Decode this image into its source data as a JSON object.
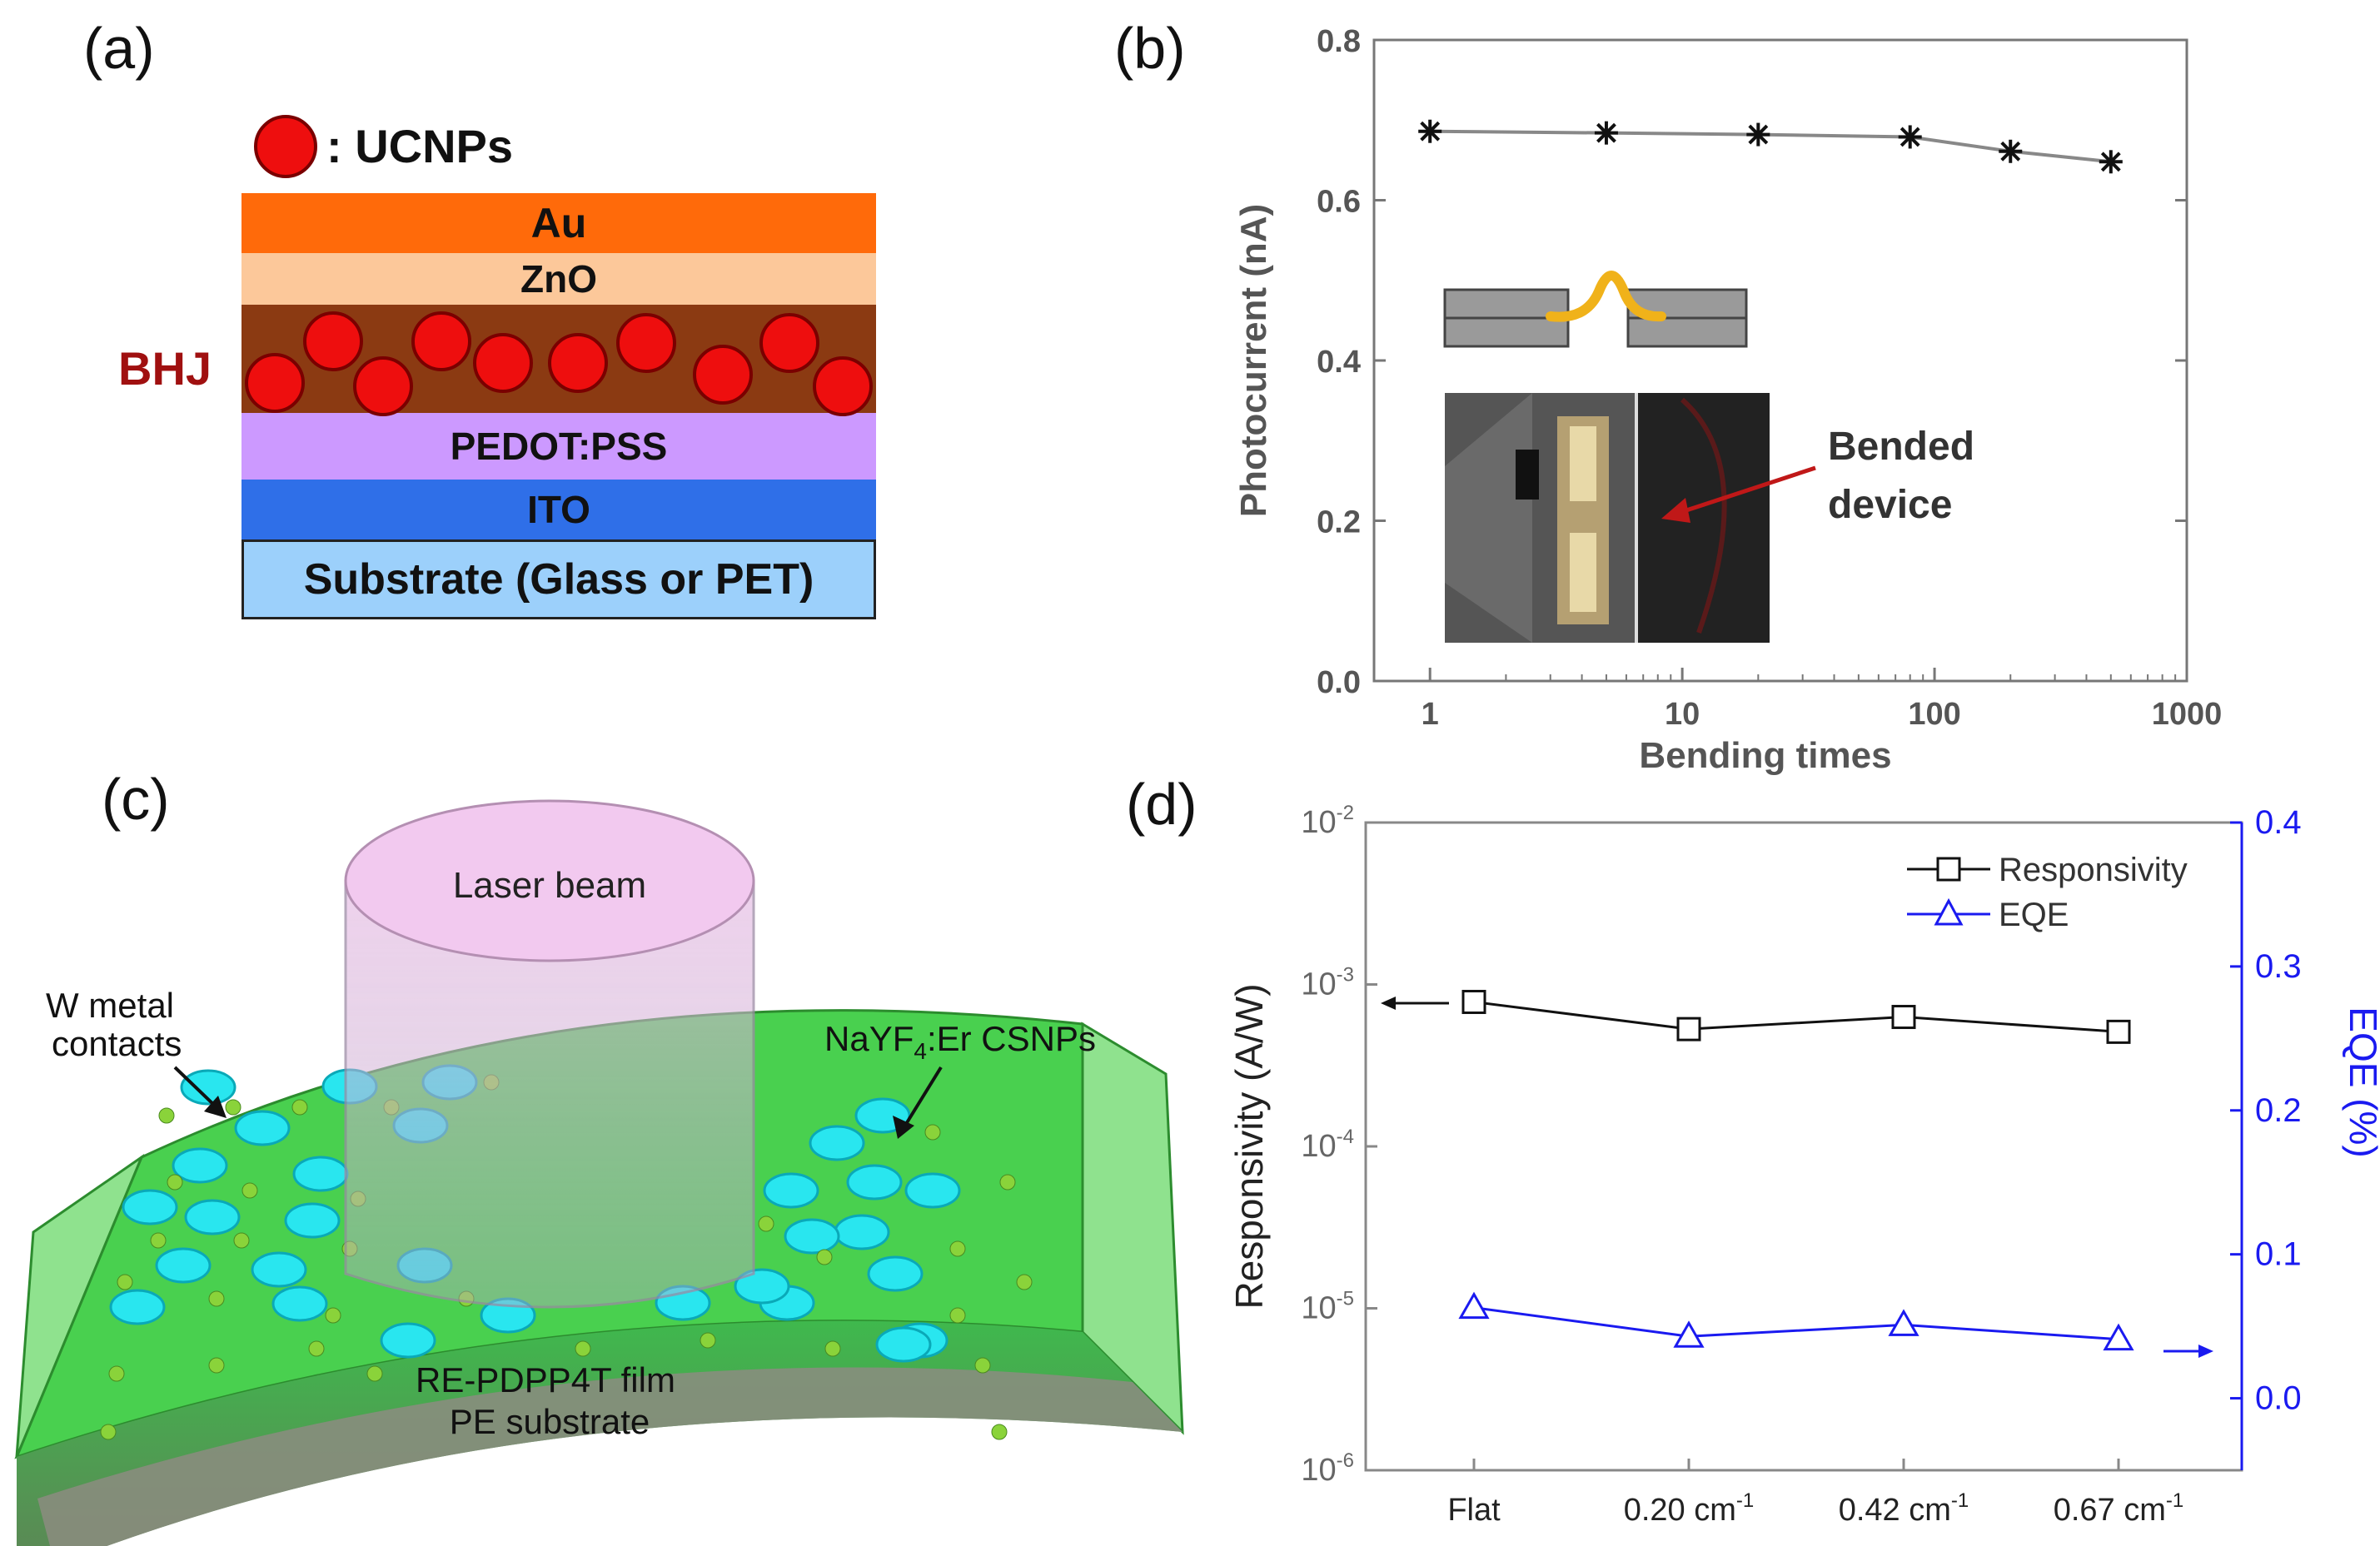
{
  "panel_labels": {
    "a": "(a)",
    "b": "(b)",
    "c": "(c)",
    "d": "(d)"
  },
  "panel_a": {
    "legend_label": ": UCNPs",
    "bhj_label": "BHJ",
    "layers": [
      "Au",
      "ZnO",
      "PEDOT:PSS",
      "ITO",
      "Substrate (Glass or PET)"
    ],
    "colors": {
      "au": "#ff6a0a",
      "zno": "#fcc89a",
      "bhj": "#8b3a12",
      "pedot": "#cc99ff",
      "ito": "#2f6fe8",
      "substrate": "#9cd0fb",
      "ucnp": "#ee0e0e",
      "bhj_text": "#a01010"
    }
  },
  "panel_b": {
    "inset_label": [
      "Bended",
      "device"
    ],
    "chart_data": {
      "type": "line",
      "x": [
        1,
        5,
        20,
        80,
        200,
        500
      ],
      "y": [
        0.686,
        0.684,
        0.682,
        0.679,
        0.661,
        0.648
      ],
      "xscale": "log",
      "xlim": [
        0.6,
        1000
      ],
      "ylim": [
        0.0,
        0.8
      ],
      "xticks": [
        "1",
        "10",
        "100",
        "1000"
      ],
      "yticks": [
        "0.0",
        "0.2",
        "0.4",
        "0.6",
        "0.8"
      ],
      "xlabel": "Bending times",
      "ylabel": "Photocurrent (nA)",
      "marker": "asterisk"
    }
  },
  "panel_c": {
    "laser_label": "Laser beam",
    "contacts_label": [
      "W metal",
      "contacts"
    ],
    "csnp_label": {
      "prefix": "NaYF",
      "sub": "4",
      "suffix": ":Er CSNPs"
    },
    "film_label": "RE-PDPP4T film",
    "substrate_label": "PE substrate"
  },
  "panel_d": {
    "chart_data": {
      "type": "line",
      "categories": [
        "Flat",
        "0.20 cm",
        "0.42 cm",
        "0.67 cm"
      ],
      "category_superscript": [
        "",
        "-1",
        "-1",
        "-1"
      ],
      "series": [
        {
          "name": "Responsivity",
          "axis": "left",
          "values": [
            0.00078,
            0.00053,
            0.00063,
            0.00051
          ],
          "color": "#111111",
          "marker": "square"
        },
        {
          "name": "EQE",
          "axis": "right",
          "values": [
            0.063,
            0.043,
            0.051,
            0.041
          ],
          "color": "#1a1af0",
          "marker": "triangle"
        }
      ],
      "left_axis": {
        "label": "Responsivity (A/W)",
        "scale": "log",
        "ylim": [
          1e-06,
          0.01
        ],
        "ticks": [
          {
            "base": "10",
            "exp": "-2"
          },
          {
            "base": "10",
            "exp": "-3"
          },
          {
            "base": "10",
            "exp": "-4"
          },
          {
            "base": "10",
            "exp": "-5"
          },
          {
            "base": "10",
            "exp": "-6"
          }
        ]
      },
      "right_axis": {
        "label": "EQE (%)",
        "ylim": [
          -0.05,
          0.4
        ],
        "ticks": [
          "0.4",
          "0.3",
          "0.2",
          "0.1",
          "0.0"
        ]
      },
      "legend_position": "top-right"
    }
  }
}
